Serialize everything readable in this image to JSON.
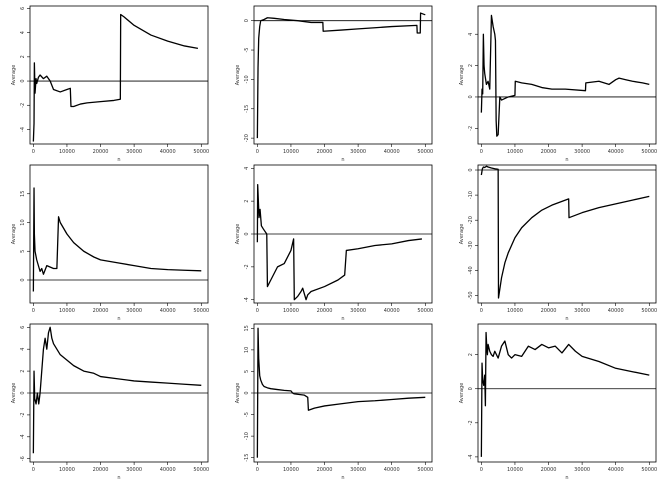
{
  "chart_data": [
    {
      "type": "line",
      "xlabel": "n",
      "ylabel": "Average",
      "xlim": [
        -1000,
        52000
      ],
      "ylim": [
        -5.2,
        6.2
      ],
      "xticks": [
        0,
        10000,
        20000,
        30000,
        40000,
        50000
      ],
      "yticks": [
        -4,
        -2,
        0,
        2,
        4,
        6
      ],
      "hline": 0,
      "series": [
        {
          "x": [
            0,
            200,
            300,
            500,
            800,
            1000,
            1500,
            2000,
            3000,
            4000,
            5000,
            6000,
            8000,
            10000,
            11000,
            11200,
            12000,
            14000,
            16000,
            20000,
            24000,
            25900,
            26000,
            27000,
            30000,
            35000,
            40000,
            45000,
            49000
          ],
          "y": [
            -5,
            -3.5,
            1.5,
            -1,
            0.2,
            -0.2,
            0.3,
            0.5,
            0.2,
            0.4,
            0,
            -0.7,
            -0.9,
            -0.7,
            -0.6,
            -2.1,
            -2.1,
            -1.9,
            -1.8,
            -1.7,
            -1.6,
            -1.5,
            5.5,
            5.3,
            4.6,
            3.8,
            3.3,
            2.9,
            2.7
          ]
        }
      ]
    },
    {
      "type": "line",
      "xlabel": "n",
      "ylabel": "Average",
      "xlim": [
        -1000,
        52000
      ],
      "ylim": [
        -21,
        2.5
      ],
      "xticks": [
        0,
        10000,
        20000,
        30000,
        40000,
        50000
      ],
      "yticks": [
        -20,
        -15,
        -10,
        -5,
        0
      ],
      "hline": 0,
      "series": [
        {
          "x": [
            0,
            200,
            400,
            700,
            1000,
            2000,
            3000,
            5000,
            8000,
            12000,
            16000,
            19500,
            19600,
            25000,
            30000,
            35000,
            40000,
            47500,
            47600,
            48500,
            48600,
            50000
          ],
          "y": [
            -20,
            -8,
            -3,
            -1,
            0,
            0.2,
            0.5,
            0.4,
            0.2,
            0,
            -0.3,
            -0.3,
            -1.8,
            -1.6,
            -1.4,
            -1.2,
            -1,
            -0.8,
            -2.1,
            -2.1,
            1.3,
            1
          ]
        }
      ]
    },
    {
      "type": "line",
      "xlabel": "n",
      "ylabel": "Average",
      "xlim": [
        -1000,
        52000
      ],
      "ylim": [
        -3,
        5.8
      ],
      "xticks": [
        0,
        10000,
        20000,
        30000,
        40000,
        50000
      ],
      "yticks": [
        -2,
        0,
        2,
        4
      ],
      "hline": 0,
      "series": [
        {
          "x": [
            0,
            200,
            400,
            600,
            800,
            1000,
            1500,
            2000,
            2500,
            3000,
            3500,
            4000,
            4200,
            4400,
            4600,
            5000,
            5500,
            6000,
            8000,
            10000,
            10100,
            12000,
            15000,
            18000,
            21000,
            25000,
            31000,
            31100,
            35000,
            38000,
            40000,
            41000,
            43000,
            45000,
            48000,
            50000
          ],
          "y": [
            -1,
            0.5,
            0.2,
            4,
            2,
            1.5,
            0.8,
            1,
            0.5,
            5.2,
            4.5,
            4,
            3.6,
            -1.5,
            -2.5,
            -2.4,
            0,
            -0.2,
            0,
            0.1,
            1,
            0.9,
            0.8,
            0.6,
            0.5,
            0.5,
            0.4,
            0.9,
            1,
            0.8,
            1.1,
            1.2,
            1.1,
            1,
            0.9,
            0.8
          ]
        }
      ]
    },
    {
      "type": "line",
      "xlabel": "n",
      "ylabel": "Average",
      "xlim": [
        -1000,
        52000
      ],
      "ylim": [
        -4,
        20
      ],
      "xticks": [
        0,
        10000,
        20000,
        30000,
        40000,
        50000
      ],
      "yticks": [
        0,
        5,
        10,
        15
      ],
      "hline": 0,
      "series": [
        {
          "x": [
            0,
            200,
            300,
            500,
            1000,
            1500,
            2000,
            2500,
            3000,
            4000,
            6000,
            7000,
            7500,
            8000,
            10000,
            12000,
            15000,
            18000,
            20000,
            25000,
            30000,
            35000,
            40000,
            45000,
            50000
          ],
          "y": [
            -2,
            16,
            8,
            5,
            3.5,
            2.5,
            1.5,
            2,
            1,
            2.5,
            2,
            2,
            11,
            10,
            8,
            6.5,
            5,
            4,
            3.5,
            3,
            2.5,
            2,
            1.8,
            1.7,
            1.6
          ]
        }
      ]
    },
    {
      "type": "line",
      "xlabel": "n",
      "ylabel": "Average",
      "xlim": [
        -1000,
        52000
      ],
      "ylim": [
        -4.2,
        4.2
      ],
      "xticks": [
        0,
        10000,
        20000,
        30000,
        40000,
        50000
      ],
      "yticks": [
        -4,
        -2,
        0,
        2,
        4
      ],
      "hline": 0,
      "series": [
        {
          "x": [
            0,
            100,
            300,
            500,
            800,
            1200,
            1800,
            2800,
            3000,
            4000,
            6000,
            8000,
            10000,
            10800,
            11000,
            12000,
            13000,
            13500,
            14500,
            15000,
            16000,
            20000,
            24000,
            26000,
            26500,
            30000,
            35000,
            40000,
            45000,
            49000
          ],
          "y": [
            -0.5,
            3,
            2,
            1,
            1.5,
            0.5,
            0.3,
            0,
            -3.2,
            -2.8,
            -2,
            -1.8,
            -1,
            -0.3,
            -4,
            -3.8,
            -3.5,
            -3.3,
            -4,
            -3.7,
            -3.5,
            -3.2,
            -2.8,
            -2.5,
            -1,
            -0.9,
            -0.7,
            -0.6,
            -0.4,
            -0.3
          ]
        }
      ]
    },
    {
      "type": "line",
      "xlabel": "n",
      "ylabel": "Average",
      "xlim": [
        -1000,
        52000
      ],
      "ylim": [
        -53,
        2
      ],
      "xticks": [
        0,
        10000,
        20000,
        30000,
        40000,
        50000
      ],
      "yticks": [
        -50,
        -40,
        -30,
        -20,
        -10,
        0
      ],
      "hline": 0,
      "series": [
        {
          "x": [
            0,
            300,
            600,
            1000,
            1500,
            2000,
            2500,
            3000,
            4000,
            5000,
            5100,
            6000,
            7000,
            8000,
            10000,
            12000,
            15000,
            18000,
            21000,
            24000,
            26000,
            26100,
            30000,
            35000,
            40000,
            45000,
            50000
          ],
          "y": [
            -2,
            0.5,
            1.2,
            1,
            1.5,
            1.2,
            1,
            0.8,
            0.5,
            0.3,
            -51,
            -43,
            -37,
            -33,
            -27,
            -23,
            -19,
            -16,
            -14,
            -12.5,
            -11.5,
            -19,
            -17,
            -15,
            -13.5,
            -12,
            -10.5
          ]
        }
      ]
    },
    {
      "type": "line",
      "xlabel": "n",
      "ylabel": "Average",
      "xlim": [
        -1000,
        52000
      ],
      "ylim": [
        -6.3,
        6.3
      ],
      "xticks": [
        0,
        10000,
        20000,
        30000,
        40000,
        50000
      ],
      "yticks": [
        -6,
        -4,
        -2,
        0,
        2,
        4,
        6
      ],
      "hline": 0,
      "series": [
        {
          "x": [
            0,
            200,
            400,
            800,
            1200,
            1600,
            2000,
            2500,
            3000,
            3500,
            4000,
            4500,
            5000,
            5500,
            6000,
            7000,
            8000,
            10000,
            12000,
            15000,
            18000,
            20000,
            25000,
            30000,
            35000,
            40000,
            45000,
            50000
          ],
          "y": [
            -5.5,
            2,
            -0.5,
            -1,
            0,
            -1,
            0,
            2,
            4,
            5,
            4,
            5.5,
            6,
            5,
            4.5,
            4,
            3.5,
            3,
            2.5,
            2,
            1.8,
            1.5,
            1.3,
            1.1,
            1,
            0.9,
            0.8,
            0.7
          ]
        }
      ]
    },
    {
      "type": "line",
      "xlabel": "n",
      "ylabel": "Average",
      "xlim": [
        -1000,
        52000
      ],
      "ylim": [
        -16,
        16
      ],
      "xticks": [
        0,
        10000,
        20000,
        30000,
        40000,
        50000
      ],
      "yticks": [
        -15,
        -10,
        -5,
        0,
        5,
        10,
        15
      ],
      "hline": 0,
      "series": [
        {
          "x": [
            0,
            200,
            400,
            700,
            1000,
            1500,
            2000,
            3000,
            4000,
            6000,
            8000,
            10000,
            10500,
            11000,
            14000,
            15000,
            15200,
            17000,
            20000,
            25000,
            30000,
            35000,
            40000,
            45000,
            50000
          ],
          "y": [
            -15,
            15,
            8,
            4,
            3,
            2,
            1.5,
            1.2,
            1,
            0.8,
            0.6,
            0.5,
            0,
            -0.2,
            -0.5,
            -1,
            -4,
            -3.5,
            -3,
            -2.5,
            -2,
            -1.8,
            -1.5,
            -1.2,
            -1
          ]
        }
      ]
    },
    {
      "type": "line",
      "xlabel": "n",
      "ylabel": "Average",
      "xlim": [
        -1000,
        52000
      ],
      "ylim": [
        -4.3,
        3.8
      ],
      "xticks": [
        0,
        10000,
        20000,
        30000,
        40000,
        50000
      ],
      "yticks": [
        -4,
        -2,
        0,
        2
      ],
      "hline": 0,
      "series": [
        {
          "x": [
            0,
            200,
            400,
            700,
            1000,
            1200,
            1400,
            1600,
            1800,
            2000,
            2500,
            3000,
            3500,
            4000,
            5000,
            6000,
            7000,
            8000,
            9000,
            10000,
            12000,
            14000,
            16000,
            18000,
            20000,
            22000,
            24000,
            26000,
            28000,
            30000,
            35000,
            40000,
            45000,
            50000
          ],
          "y": [
            -4,
            1.5,
            0.5,
            0.2,
            0.8,
            -1,
            3.3,
            2.5,
            2,
            2.6,
            2.2,
            2,
            1.9,
            2.2,
            1.8,
            2.5,
            2.8,
            2,
            1.8,
            2,
            1.9,
            2.5,
            2.3,
            2.6,
            2.4,
            2.5,
            2.1,
            2.6,
            2.2,
            1.9,
            1.6,
            1.2,
            1,
            0.8
          ]
        }
      ]
    }
  ]
}
